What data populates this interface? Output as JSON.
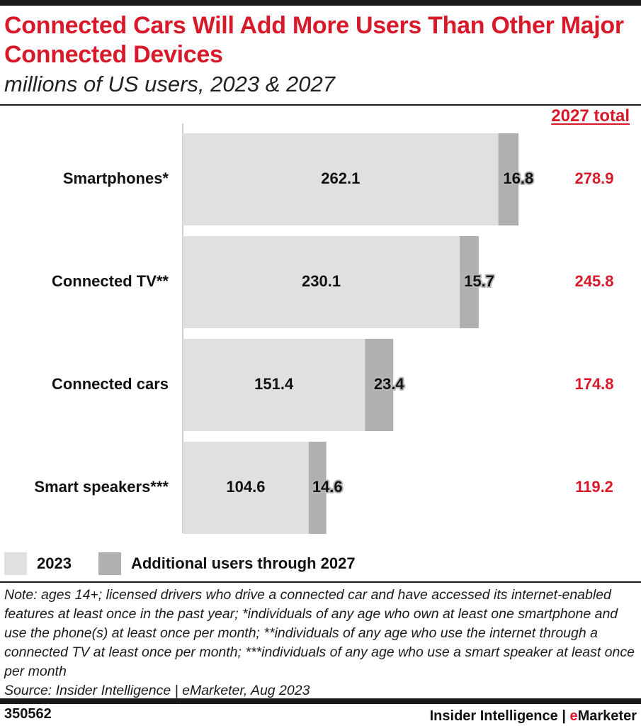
{
  "title": "Connected Cars Will Add More Users Than Other Major Connected Devices",
  "subtitle": "millions of US users, 2023 & 2027",
  "total_header": "2027 total",
  "legend": {
    "items": [
      {
        "label": "2023",
        "color": "#e0e0e0"
      },
      {
        "label": "Additional users through 2027",
        "color": "#b0b0b0"
      }
    ]
  },
  "note": "Note: ages 14+; licensed drivers who drive a connected car and have accessed its internet-enabled features at least once in the past year; *individuals of any age who own at least one smartphone and use the phone(s) at least once per month; **individuals of any age who use the internet through a connected TV at least once per month; ***individuals of any age who use a smart speaker at least once per month",
  "source": "Source: Insider Intelligence | eMarketer, Aug 2023",
  "footer": {
    "chart_id": "350562",
    "brand_prefix": "Insider Intelligence | ",
    "brand_e": "e",
    "brand_suffix": "Marketer"
  },
  "colors": {
    "accent": "#d7192a",
    "base_bar": "#e0e0e0",
    "added_bar": "#b0b0b0"
  },
  "chart_data": {
    "type": "bar",
    "orientation": "horizontal",
    "stacked": true,
    "categories": [
      "Smartphones*",
      "Connected TV**",
      "Connected cars",
      "Smart speakers***"
    ],
    "series": [
      {
        "name": "2023",
        "values": [
          262.1,
          230.1,
          151.4,
          104.6
        ]
      },
      {
        "name": "Additional users through 2027",
        "values": [
          16.8,
          15.7,
          23.4,
          14.6
        ]
      }
    ],
    "totals": [
      278.9,
      245.8,
      174.8,
      119.2
    ],
    "xlim": [
      0,
      300
    ],
    "grid": false,
    "legend_position": "bottom-left"
  }
}
